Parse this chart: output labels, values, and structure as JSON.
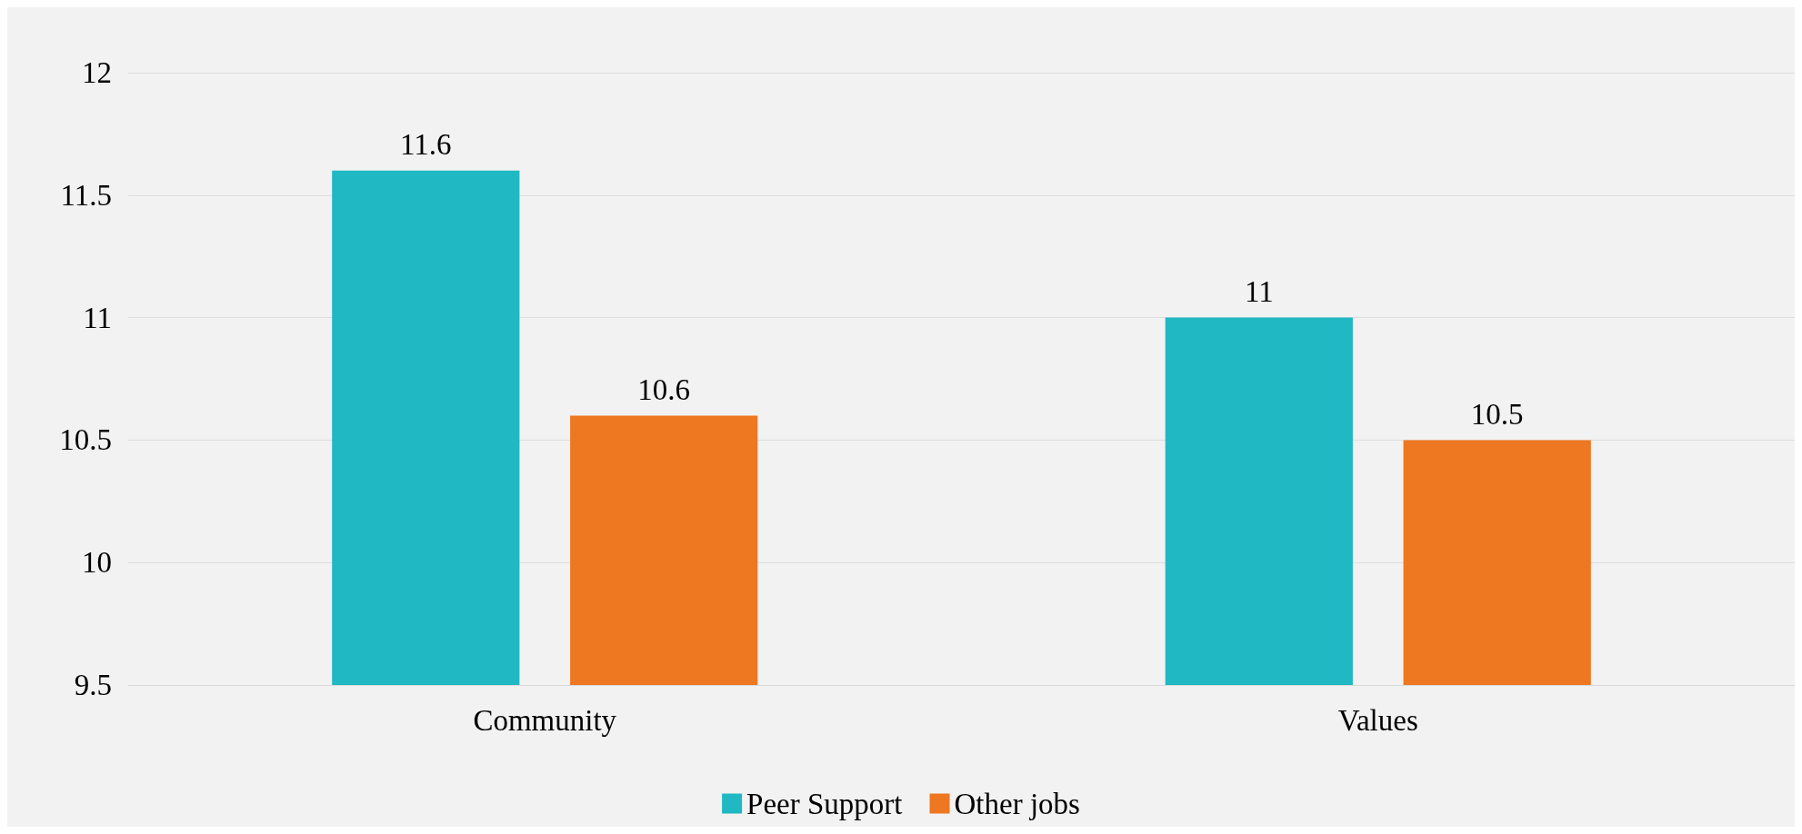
{
  "chart_data": {
    "type": "bar",
    "categories": [
      "Community",
      "Values"
    ],
    "series": [
      {
        "name": "Peer Support",
        "color": "#1fb8c3",
        "values": [
          11.6,
          11
        ]
      },
      {
        "name": "Other jobs",
        "color": "#ee7722",
        "values": [
          10.6,
          10.5
        ]
      }
    ],
    "ylim": [
      9.5,
      12
    ],
    "yticks": [
      9.5,
      10,
      10.5,
      11,
      11.5,
      12
    ],
    "grid": "y",
    "legend": "bottom",
    "data_labels": true
  }
}
